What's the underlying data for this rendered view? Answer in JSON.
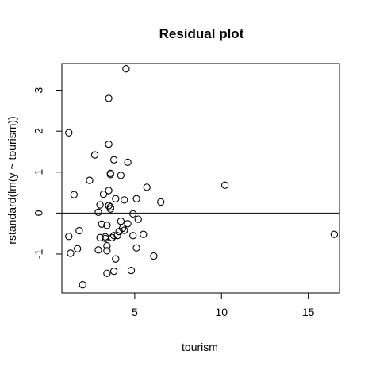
{
  "chart_data": {
    "type": "scatter",
    "title": "Residual plot",
    "xlabel": "tourism",
    "ylabel": "rstandard(lm(y ~ tourism))",
    "xlim": [
      0.8,
      16.8
    ],
    "ylim": [
      -1.95,
      3.65
    ],
    "xticks": [
      5,
      10,
      15
    ],
    "yticks": [
      -1,
      0,
      1,
      2,
      3
    ],
    "xtick_labels": [
      "5",
      "10",
      "15"
    ],
    "ytick_labels": [
      "-1",
      "0",
      "1",
      "2",
      "3"
    ],
    "reference_line": {
      "y": 0
    },
    "marker": "open-circle",
    "grid": false,
    "legend": "none",
    "colors": {
      "point_stroke": "#000000",
      "axis": "#000000",
      "reference_line": "#000000"
    },
    "points": [
      {
        "x": 4.5,
        "y": 3.52
      },
      {
        "x": 3.5,
        "y": 2.8
      },
      {
        "x": 1.2,
        "y": 1.96
      },
      {
        "x": 3.5,
        "y": 1.68
      },
      {
        "x": 2.7,
        "y": 1.42
      },
      {
        "x": 3.8,
        "y": 1.3
      },
      {
        "x": 4.6,
        "y": 1.24
      },
      {
        "x": 3.6,
        "y": 0.97
      },
      {
        "x": 3.6,
        "y": 0.94
      },
      {
        "x": 4.2,
        "y": 0.92
      },
      {
        "x": 2.4,
        "y": 0.8
      },
      {
        "x": 10.2,
        "y": 0.68
      },
      {
        "x": 5.7,
        "y": 0.63
      },
      {
        "x": 3.5,
        "y": 0.55
      },
      {
        "x": 1.5,
        "y": 0.45
      },
      {
        "x": 3.2,
        "y": 0.46
      },
      {
        "x": 3.9,
        "y": 0.35
      },
      {
        "x": 5.1,
        "y": 0.35
      },
      {
        "x": 4.4,
        "y": 0.32
      },
      {
        "x": 6.5,
        "y": 0.27
      },
      {
        "x": 3.0,
        "y": 0.2
      },
      {
        "x": 3.5,
        "y": 0.18
      },
      {
        "x": 3.6,
        "y": 0.15
      },
      {
        "x": 3.6,
        "y": 0.1
      },
      {
        "x": 2.9,
        "y": 0.02
      },
      {
        "x": 4.9,
        "y": -0.02
      },
      {
        "x": 5.2,
        "y": -0.15
      },
      {
        "x": 4.2,
        "y": -0.2
      },
      {
        "x": 3.1,
        "y": -0.27
      },
      {
        "x": 4.6,
        "y": -0.26
      },
      {
        "x": 3.4,
        "y": -0.3
      },
      {
        "x": 4.3,
        "y": -0.37
      },
      {
        "x": 4.4,
        "y": -0.42
      },
      {
        "x": 1.8,
        "y": -0.43
      },
      {
        "x": 4.1,
        "y": -0.45
      },
      {
        "x": 3.8,
        "y": -0.55
      },
      {
        "x": 4.0,
        "y": -0.55
      },
      {
        "x": 1.2,
        "y": -0.57
      },
      {
        "x": 5.5,
        "y": -0.52
      },
      {
        "x": 3.3,
        "y": -0.58
      },
      {
        "x": 3.7,
        "y": -0.6
      },
      {
        "x": 3.3,
        "y": -0.62
      },
      {
        "x": 3.0,
        "y": -0.6
      },
      {
        "x": 4.9,
        "y": -0.55
      },
      {
        "x": 16.5,
        "y": -0.52
      },
      {
        "x": 3.4,
        "y": -0.8
      },
      {
        "x": 1.7,
        "y": -0.87
      },
      {
        "x": 5.1,
        "y": -0.85
      },
      {
        "x": 2.9,
        "y": -0.9
      },
      {
        "x": 3.4,
        "y": -0.92
      },
      {
        "x": 1.3,
        "y": -0.98
      },
      {
        "x": 6.1,
        "y": -1.05
      },
      {
        "x": 3.9,
        "y": -1.12
      },
      {
        "x": 3.4,
        "y": -1.47
      },
      {
        "x": 3.8,
        "y": -1.42
      },
      {
        "x": 4.8,
        "y": -1.4
      },
      {
        "x": 2.0,
        "y": -1.75
      }
    ]
  }
}
